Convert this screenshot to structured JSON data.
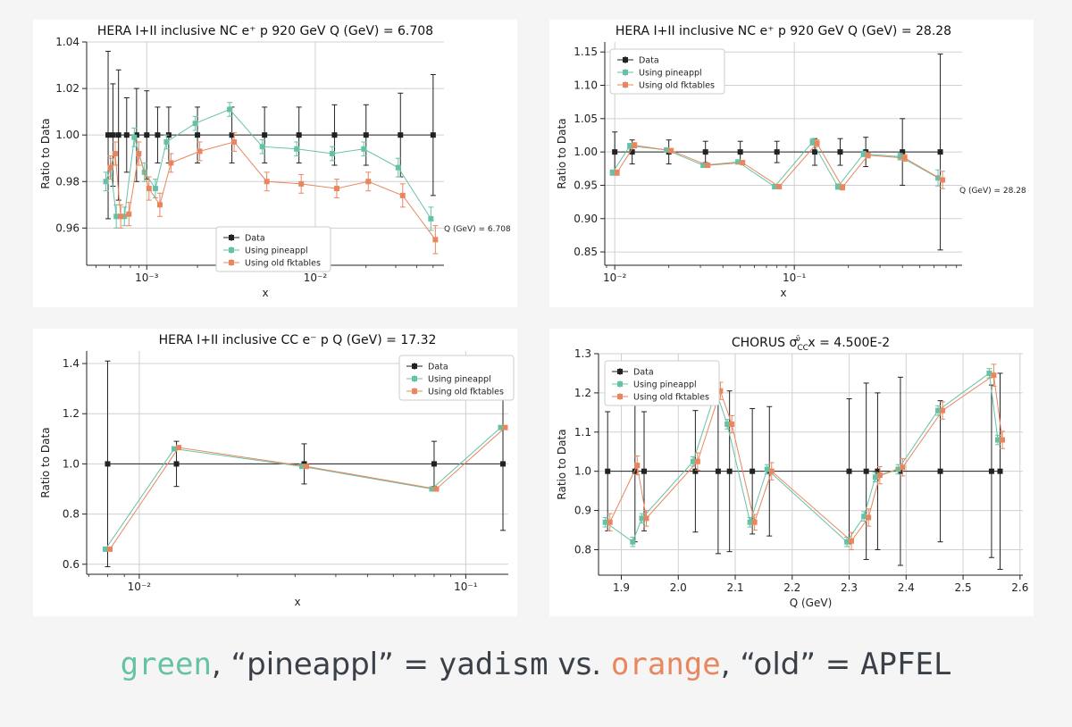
{
  "colors": {
    "data": "#222222",
    "pineappl": "#66c2a5",
    "old": "#e8875f",
    "grid": "#d0d0d0",
    "caption_text": "#3a4048"
  },
  "chart_data": [
    {
      "type": "scatter",
      "id": "p1",
      "title": "HERA I+II inclusive NC e⁺ p 920 GeV Q (GeV) = 6.708",
      "xlabel": "x",
      "ylabel": "Ratio to Data",
      "xscale": "log",
      "xlim": [
        0.00044,
        0.058
      ],
      "ylim": [
        0.944,
        1.04
      ],
      "xticks": [
        {
          "v": 0.001,
          "label": "10⁻³"
        },
        {
          "v": 0.01,
          "label": "10⁻²"
        }
      ],
      "yticks": [
        0.96,
        0.98,
        1.0,
        1.02,
        1.04
      ],
      "ytick_labels": [
        "0.96",
        "0.98",
        "1.00",
        "1.02",
        "1.04"
      ],
      "legend_position": "lower-center",
      "annotation": "Q (GeV) = 6.708",
      "series": [
        {
          "name": "Data",
          "color": "data",
          "x": [
            0.00059,
            0.00063,
            0.00068,
            0.00076,
            0.00087,
            0.001,
            0.00116,
            0.00135,
            0.002,
            0.0032,
            0.005,
            0.008,
            0.013,
            0.02,
            0.032,
            0.05
          ],
          "y": [
            1,
            1,
            1,
            1,
            1,
            1,
            1,
            1,
            1,
            1,
            1,
            1,
            1,
            1,
            1,
            1
          ],
          "err": [
            0.036,
            0.022,
            0.028,
            0.016,
            0.02,
            0.019,
            0.012,
            0.012,
            0.012,
            0.012,
            0.012,
            0.012,
            0.013,
            0.013,
            0.018,
            0.026
          ]
        },
        {
          "name": "Using pineappl",
          "color": "pineappl",
          "x": [
            0.00059,
            0.00063,
            0.00068,
            0.00076,
            0.00087,
            0.001,
            0.00116,
            0.00135,
            0.002,
            0.0032,
            0.005,
            0.008,
            0.013,
            0.02,
            0.032,
            0.05
          ],
          "y": [
            0.98,
            0.986,
            0.965,
            0.965,
            0.999,
            0.984,
            0.977,
            0.997,
            1.005,
            1.011,
            0.995,
            0.994,
            0.992,
            0.994,
            0.986,
            0.964
          ],
          "err": [
            0.004,
            0.004,
            0.005,
            0.004,
            0.004,
            0.004,
            0.004,
            0.003,
            0.003,
            0.003,
            0.003,
            0.003,
            0.003,
            0.003,
            0.004,
            0.005
          ]
        },
        {
          "name": "Using old fktables",
          "color": "old",
          "x": [
            0.00059,
            0.00063,
            0.00068,
            0.00076,
            0.00087,
            0.001,
            0.00116,
            0.00135,
            0.002,
            0.0032,
            0.005,
            0.008,
            0.013,
            0.02,
            0.032,
            0.05
          ],
          "y": [
            0.986,
            0.992,
            0.965,
            0.966,
            0.992,
            0.977,
            0.97,
            0.988,
            0.993,
            0.997,
            0.98,
            0.979,
            0.977,
            0.98,
            0.974,
            0.955
          ],
          "err": [
            0.005,
            0.005,
            0.005,
            0.005,
            0.005,
            0.005,
            0.005,
            0.004,
            0.004,
            0.004,
            0.004,
            0.004,
            0.004,
            0.004,
            0.005,
            0.006
          ]
        }
      ]
    },
    {
      "type": "scatter",
      "id": "p2",
      "title": "HERA I+II inclusive NC e⁺ p 920 GeV Q (GeV) = 28.28",
      "xlabel": "x",
      "ylabel": "Ratio to Data",
      "xscale": "log",
      "xlim": [
        0.0088,
        0.86
      ],
      "ylim": [
        0.83,
        1.165
      ],
      "xticks": [
        {
          "v": 0.01,
          "label": "10⁻²"
        },
        {
          "v": 0.1,
          "label": "10⁻¹"
        }
      ],
      "yticks": [
        0.85,
        0.9,
        0.95,
        1.0,
        1.05,
        1.1,
        1.15
      ],
      "ytick_labels": [
        "0.85",
        "0.90",
        "0.95",
        "1.00",
        "1.05",
        "1.10",
        "1.15"
      ],
      "legend_position": "top-left",
      "annotation": "Q (GeV) = 28.28",
      "series": [
        {
          "name": "Data",
          "color": "data",
          "x": [
            0.01,
            0.0125,
            0.02,
            0.032,
            0.05,
            0.08,
            0.13,
            0.18,
            0.25,
            0.4,
            0.65
          ],
          "y": [
            1,
            1,
            1,
            1,
            1,
            1,
            1,
            1,
            1,
            1,
            1
          ],
          "err": [
            0.03,
            0.018,
            0.018,
            0.016,
            0.016,
            0.016,
            0.02,
            0.02,
            0.022,
            0.05,
            0.147
          ]
        },
        {
          "name": "Using pineappl",
          "color": "pineappl",
          "x": [
            0.01,
            0.0125,
            0.02,
            0.032,
            0.05,
            0.08,
            0.13,
            0.18,
            0.25,
            0.4,
            0.65
          ],
          "y": [
            0.969,
            1.009,
            1.003,
            0.98,
            0.985,
            0.948,
            1.015,
            0.948,
            0.997,
            0.993,
            0.961
          ],
          "err": [
            0.004,
            0.004,
            0.003,
            0.003,
            0.003,
            0.003,
            0.005,
            0.004,
            0.004,
            0.005,
            0.012
          ]
        },
        {
          "name": "Using old fktables",
          "color": "old",
          "x": [
            0.01,
            0.0125,
            0.02,
            0.032,
            0.05,
            0.08,
            0.13,
            0.18,
            0.25,
            0.4,
            0.65
          ],
          "y": [
            0.969,
            1.01,
            1.002,
            0.98,
            0.984,
            0.948,
            1.013,
            0.947,
            0.995,
            0.991,
            0.958
          ],
          "err": [
            0.004,
            0.004,
            0.003,
            0.003,
            0.003,
            0.003,
            0.005,
            0.004,
            0.004,
            0.005,
            0.013
          ]
        }
      ]
    },
    {
      "type": "scatter",
      "id": "p3",
      "title": "HERA I+II inclusive CC e⁻ p Q (GeV) = 17.32",
      "xlabel": "x",
      "ylabel": "Ratio to Data",
      "xscale": "log",
      "xlim": [
        0.0069,
        0.135
      ],
      "ylim": [
        0.56,
        1.45
      ],
      "xticks": [
        {
          "v": 0.01,
          "label": "10⁻²"
        },
        {
          "v": 0.1,
          "label": "10⁻¹"
        }
      ],
      "yticks": [
        0.6,
        0.8,
        1.0,
        1.2,
        1.4
      ],
      "ytick_labels": [
        "0.6",
        "0.8",
        "1.0",
        "1.2",
        "1.4"
      ],
      "legend_position": "top-right",
      "annotation": "",
      "series": [
        {
          "name": "Data",
          "color": "data",
          "x": [
            0.008,
            0.013,
            0.032,
            0.08,
            0.13
          ],
          "y": [
            1,
            1,
            1,
            1,
            1
          ],
          "err": [
            0.41,
            0.09,
            0.08,
            0.09,
            0.265
          ]
        },
        {
          "name": "Using pineappl",
          "color": "pineappl",
          "x": [
            0.008,
            0.013,
            0.032,
            0.08,
            0.13
          ],
          "y": [
            0.66,
            1.06,
            0.99,
            0.9,
            1.145
          ],
          "err": [
            0.004,
            0.004,
            0.004,
            0.004,
            0.004
          ]
        },
        {
          "name": "Using old fktables",
          "color": "old",
          "x": [
            0.008,
            0.013,
            0.032,
            0.08,
            0.13
          ],
          "y": [
            0.66,
            1.065,
            0.99,
            0.9,
            1.145
          ],
          "err": [
            0.004,
            0.004,
            0.004,
            0.004,
            0.004
          ]
        }
      ]
    },
    {
      "type": "scatter",
      "id": "p4",
      "title": "CHORUS σ",
      "title_sub": "CC",
      "title_sup": "ν̄",
      "title_tail": " x = 4.500E-2",
      "xlabel": "Q (GeV)",
      "ylabel": "Ratio to Data",
      "xscale": "linear",
      "xlim": [
        1.86,
        2.605
      ],
      "ylim": [
        0.735,
        1.3
      ],
      "xticks": [
        {
          "v": 1.9,
          "label": "1.9"
        },
        {
          "v": 2.0,
          "label": "2.0"
        },
        {
          "v": 2.1,
          "label": "2.1"
        },
        {
          "v": 2.2,
          "label": "2.2"
        },
        {
          "v": 2.3,
          "label": "2.3"
        },
        {
          "v": 2.4,
          "label": "2.4"
        },
        {
          "v": 2.5,
          "label": "2.5"
        },
        {
          "v": 2.6,
          "label": "2.6"
        }
      ],
      "yticks": [
        0.8,
        0.9,
        1.0,
        1.1,
        1.2,
        1.3
      ],
      "ytick_labels": [
        "0.8",
        "0.9",
        "1.0",
        "1.1",
        "1.2",
        "1.3"
      ],
      "legend_position": "top-left",
      "annotation": "",
      "series": [
        {
          "name": "Data",
          "color": "data",
          "x": [
            1.876,
            1.924,
            1.94,
            2.03,
            2.07,
            2.09,
            2.13,
            2.16,
            2.3,
            2.33,
            2.35,
            2.39,
            2.46,
            2.55,
            2.565
          ],
          "y": [
            1,
            1,
            1,
            1,
            1,
            1,
            1,
            1,
            1,
            1,
            1,
            1,
            1,
            1,
            1
          ],
          "err": [
            0.152,
            0.18,
            0.152,
            0.155,
            0.21,
            0.205,
            0.16,
            0.165,
            0.185,
            0.225,
            0.2,
            0.24,
            0.18,
            0.22,
            0.25
          ]
        },
        {
          "name": "Using pineappl",
          "color": "pineappl",
          "x": [
            1.876,
            1.924,
            1.94,
            2.03,
            2.07,
            2.09,
            2.13,
            2.16,
            2.3,
            2.33,
            2.35,
            2.39,
            2.46,
            2.55,
            2.565
          ],
          "y": [
            0.87,
            0.82,
            0.88,
            1.025,
            1.205,
            1.12,
            0.87,
            1.005,
            0.82,
            0.885,
            0.985,
            1.005,
            1.155,
            1.25,
            1.08
          ],
          "err": [
            0.012,
            0.012,
            0.012,
            0.012,
            0.012,
            0.012,
            0.012,
            0.012,
            0.012,
            0.012,
            0.012,
            0.012,
            0.012,
            0.012,
            0.012
          ]
        },
        {
          "name": "Using old fktables",
          "color": "old",
          "x": [
            1.876,
            1.924,
            1.94,
            2.03,
            2.07,
            2.09,
            2.13,
            2.16,
            2.3,
            2.33,
            2.35,
            2.39,
            2.46,
            2.55,
            2.565
          ],
          "y": [
            0.87,
            1.015,
            0.88,
            1.025,
            1.205,
            1.12,
            0.87,
            1.0,
            0.822,
            0.882,
            0.99,
            1.01,
            1.155,
            1.245,
            1.08
          ],
          "err": [
            0.022,
            0.024,
            0.02,
            0.022,
            0.022,
            0.022,
            0.02,
            0.022,
            0.022,
            0.022,
            0.022,
            0.022,
            0.022,
            0.028,
            0.022
          ]
        }
      ]
    }
  ],
  "caption": {
    "green": "green",
    "comma1": ", ",
    "quote_pineappl": "“pineappl”",
    "eq1": " = ",
    "yadism": "yadism",
    "vs": " vs. ",
    "orange": "orange",
    "comma2": ", ",
    "quote_old": "“old”",
    "eq2": " = ",
    "apfel": "APFEL"
  }
}
